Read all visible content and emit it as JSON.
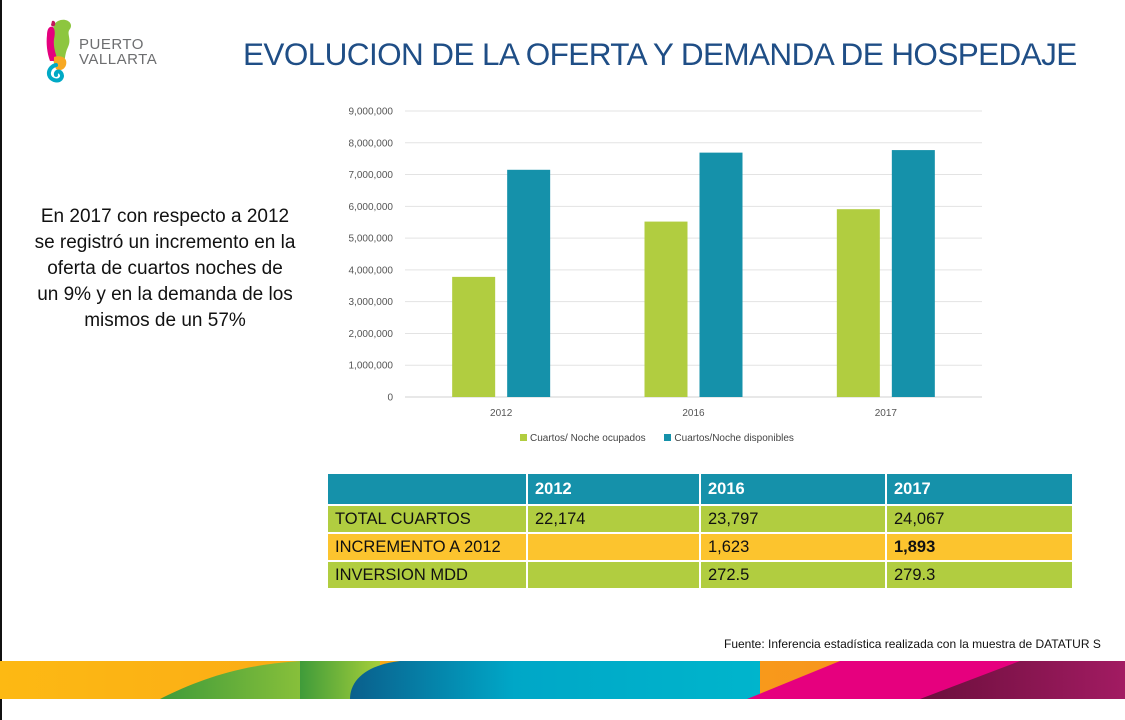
{
  "header": {
    "logo_text_line1": "PUERTO",
    "logo_text_line2": "VALLARTA",
    "title": "EVOLUCION DE LA OFERTA Y DEMANDA DE HOSPEDAJE"
  },
  "summary": {
    "lines": [
      "En 2017 con respecto a 2012",
      "se registró un incremento en la",
      "oferta de cuartos noches de",
      "un 9% y en la demanda de los",
      "mismos de un 57%"
    ]
  },
  "colors": {
    "title": "#1f4e86",
    "series_ocupados": "#b1cd40",
    "series_disponibles": "#1591aa",
    "table_header": "#1591aa",
    "table_green": "#b1cd40",
    "table_orange": "#fcc42e"
  },
  "chart_data": {
    "type": "bar",
    "title": "",
    "xlabel": "",
    "ylabel": "",
    "categories": [
      "2012",
      "2016",
      "2017"
    ],
    "series": [
      {
        "name": "Cuartos/ Noche ocupados",
        "color": "#b1cd40",
        "values": [
          3780000,
          5520000,
          5910000
        ]
      },
      {
        "name": "Cuartos/Noche disponibles",
        "color": "#1591aa",
        "values": [
          7150000,
          7690000,
          7770000
        ]
      }
    ],
    "ylim": [
      0,
      9000000
    ],
    "yticks": [
      0,
      1000000,
      2000000,
      3000000,
      4000000,
      5000000,
      6000000,
      7000000,
      8000000,
      9000000
    ],
    "ytick_labels": [
      "0",
      "1,000,000",
      "2,000,000",
      "3,000,000",
      "4,000,000",
      "5,000,000",
      "6,000,000",
      "7,000,000",
      "8,000,000",
      "9,000,000"
    ],
    "grid": true,
    "legend_position": "bottom"
  },
  "table": {
    "headers": [
      "",
      "2012",
      "2016",
      "2017"
    ],
    "rows": [
      {
        "label": "TOTAL CUARTOS",
        "values": [
          "22,174",
          "23,797",
          "24,067"
        ],
        "style": "green"
      },
      {
        "label": "INCREMENTO A 2012",
        "values": [
          "",
          "1,623",
          "1,893"
        ],
        "style": "orange"
      },
      {
        "label": "INVERSION MDD",
        "values": [
          "",
          "272.5",
          "279.3"
        ],
        "style": "green"
      }
    ]
  },
  "footer": {
    "source": "Fuente: Inferencia estadística realizada con la muestra de DATATUR S"
  }
}
